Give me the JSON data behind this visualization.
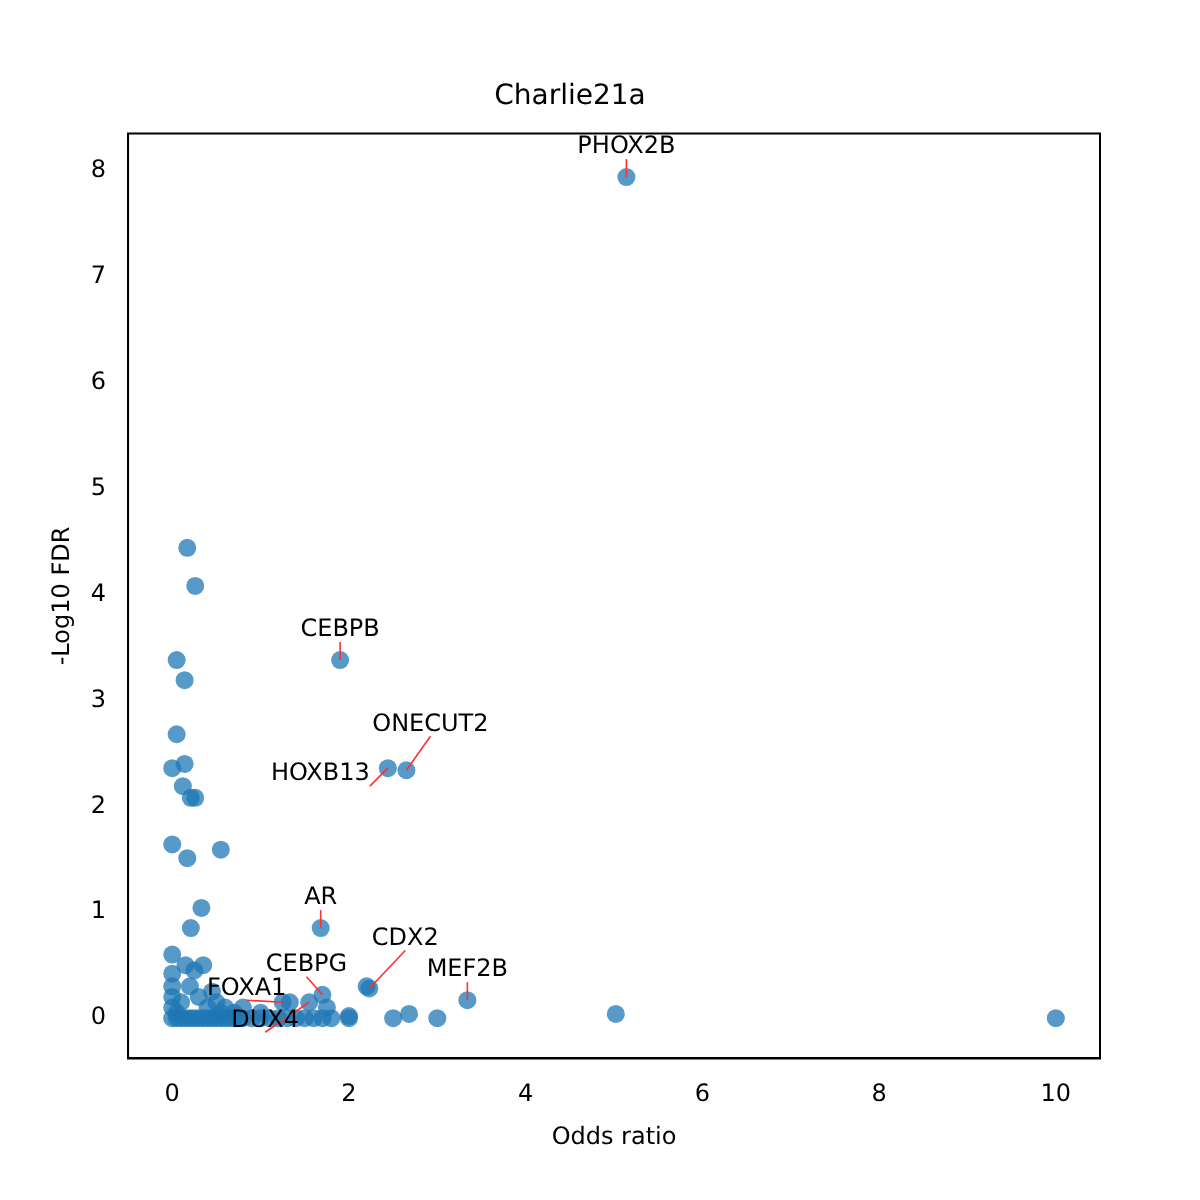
{
  "chart_data": {
    "type": "scatter",
    "title": "Charlie21a",
    "xlabel": "Odds ratio",
    "ylabel": "-Log10 FDR",
    "x": [
      5.14,
      0.17,
      0.26,
      1.9,
      0.05,
      0.14,
      0.05,
      0.14,
      2.44,
      2.65,
      0,
      0.12,
      0.21,
      0.26,
      0,
      0.55,
      0.17,
      0.33,
      0.21,
      1.68,
      0,
      2.23,
      3.34,
      5.02,
      10,
      2.5,
      2.68,
      3.0,
      1.7,
      1.25,
      1.55,
      0,
      0.05,
      0.1,
      0.15,
      0.2,
      0.25,
      0.3,
      0.35,
      0.4,
      0.45,
      0.5,
      0.55,
      0.6,
      0.65,
      0.7,
      0.75,
      0.8,
      0.9,
      1.0,
      1.1,
      1.2,
      1.3,
      1.4,
      1.5,
      1.6,
      1.7,
      1.8,
      2.0,
      0,
      0,
      0,
      0,
      0.05,
      0.1,
      0.15,
      0.2,
      0.25,
      0.3,
      0.35,
      0.4,
      0.45,
      0.5,
      0.55,
      0.6,
      0.7,
      0.8,
      1.0,
      1.33,
      1.75,
      2.0,
      2.2
    ],
    "values": [
      7.94,
      4.44,
      4.08,
      3.38,
      3.38,
      3.19,
      2.68,
      2.4,
      2.36,
      2.34,
      2.36,
      2.19,
      2.08,
      2.08,
      1.64,
      1.59,
      1.51,
      1.04,
      0.85,
      0.85,
      0.6,
      0.28,
      0.17,
      0.04,
      0,
      0,
      0.04,
      0,
      0.22,
      0.15,
      0.15,
      0,
      0,
      0,
      0,
      0,
      0,
      0,
      0,
      0,
      0,
      0,
      0,
      0,
      0,
      0,
      0,
      0,
      0,
      0,
      0,
      0,
      0,
      0,
      0,
      0,
      0,
      0,
      0,
      0.1,
      0.2,
      0.3,
      0.42,
      0.05,
      0.15,
      0.5,
      0.3,
      0.45,
      0.2,
      0.5,
      0.1,
      0.25,
      0.15,
      0.05,
      0.1,
      0.05,
      0.1,
      0.05,
      0.15,
      0.1,
      0.02,
      0.3
    ],
    "color": "#1f77b4",
    "marker": "circle",
    "grid": false,
    "legend": false,
    "xlim": [
      -0.5,
      10.5
    ],
    "xticks": [
      0,
      2,
      4,
      6,
      8,
      10
    ],
    "ylim": [
      -0.38,
      8.35
    ],
    "yticks": [
      0,
      1,
      2,
      3,
      4,
      5,
      6,
      7,
      8
    ],
    "annotations": [
      {
        "text": "PHOX2B",
        "x": 5.14,
        "y": 7.94
      },
      {
        "text": "CEBPB",
        "x": 1.9,
        "y": 3.38
      },
      {
        "text": "ONECUT2",
        "x": 2.65,
        "y": 2.34
      },
      {
        "text": "HOXB13",
        "x": 2.44,
        "y": 2.36
      },
      {
        "text": "AR",
        "x": 1.68,
        "y": 0.85
      },
      {
        "text": "CDX2",
        "x": 2.23,
        "y": 0.28
      },
      {
        "text": "CEBPG",
        "x": 1.7,
        "y": 0.22
      },
      {
        "text": "FOXA1",
        "x": 1.25,
        "y": 0.15
      },
      {
        "text": "DUX4",
        "x": 1.55,
        "y": 0.15
      },
      {
        "text": "MEF2B",
        "x": 3.34,
        "y": 0.17
      }
    ]
  }
}
